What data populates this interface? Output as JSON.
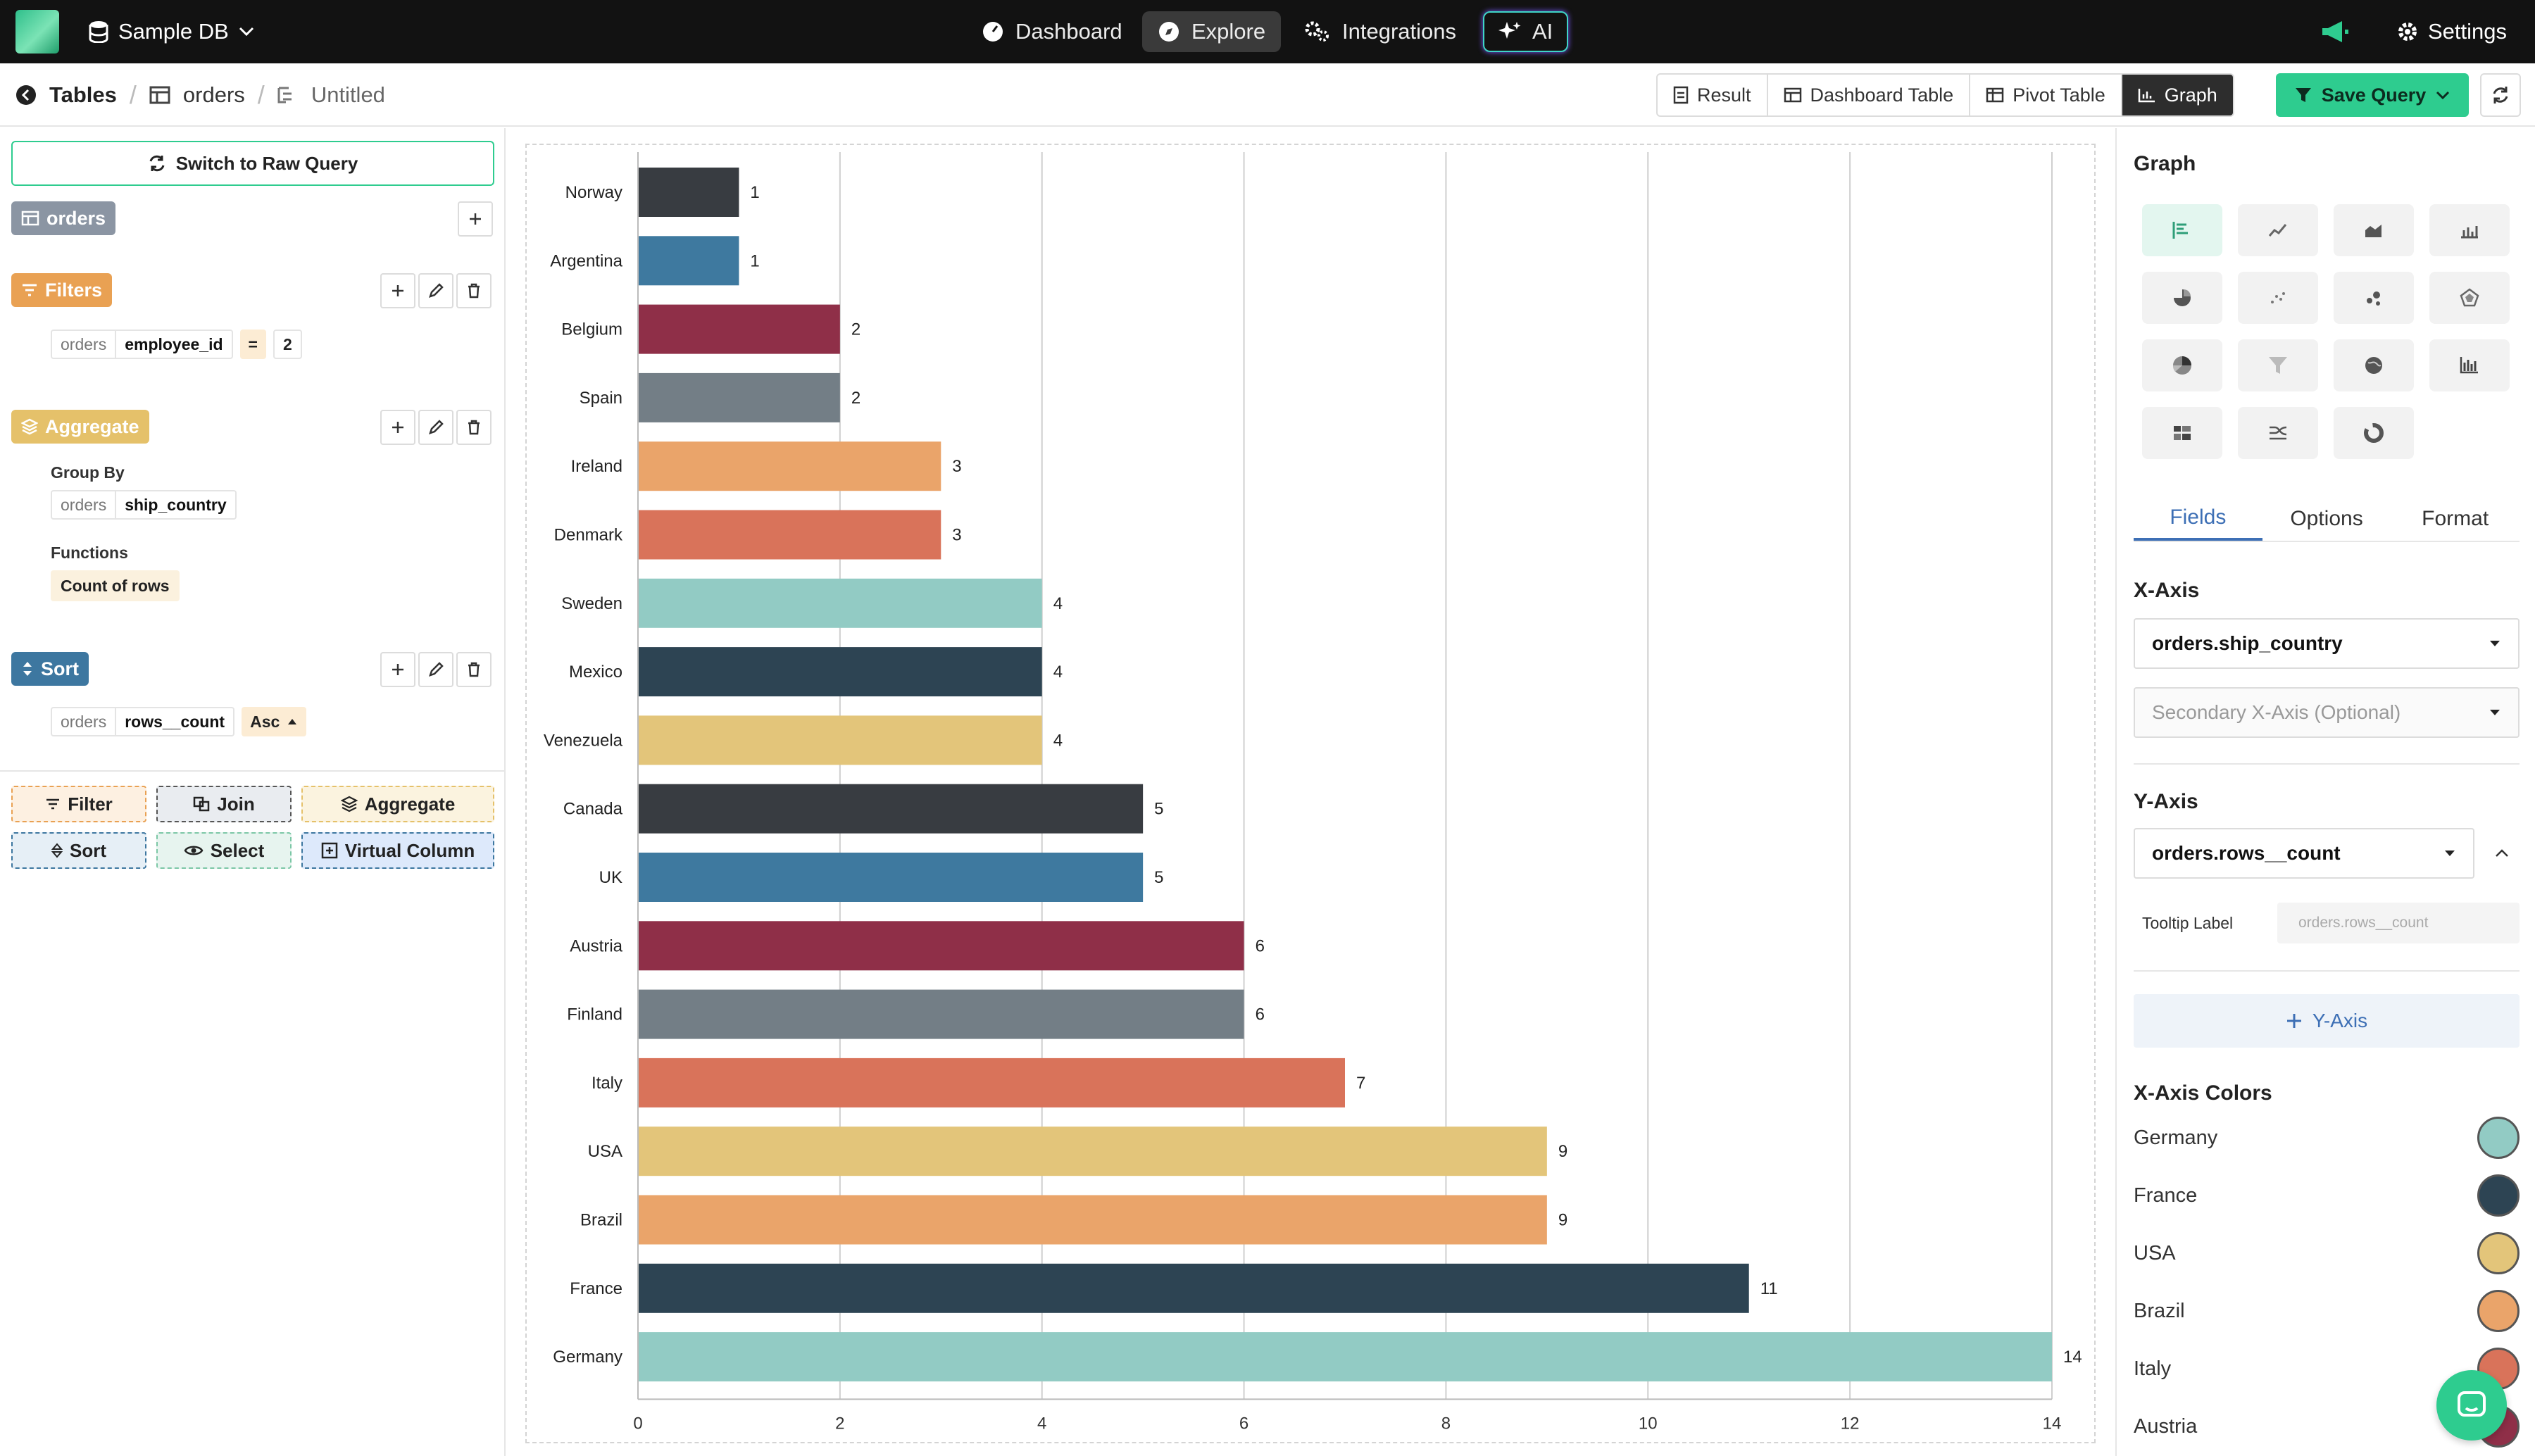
{
  "nav": {
    "db_name": "Sample DB",
    "items": [
      {
        "label": "Dashboard",
        "icon": "dashboard-gauge-icon"
      },
      {
        "label": "Explore",
        "icon": "compass-icon"
      },
      {
        "label": "Integrations",
        "icon": "gears-icon"
      },
      {
        "label": "AI",
        "icon": "sparkle-icon"
      }
    ],
    "settings_label": "Settings"
  },
  "breadcrumb": {
    "root": "Tables",
    "table": "orders",
    "query": "Untitled"
  },
  "view_tabs": [
    {
      "label": "Result"
    },
    {
      "label": "Dashboard Table"
    },
    {
      "label": "Pivot Table"
    },
    {
      "label": "Graph"
    }
  ],
  "save_label": "Save Query",
  "left": {
    "raw_query_label": "Switch to Raw Query",
    "source_label": "orders",
    "filters": {
      "label": "Filters",
      "table": "orders",
      "column": "employee_id",
      "operator": "=",
      "value": "2"
    },
    "aggregate": {
      "label": "Aggregate",
      "group_by_label": "Group By",
      "group_table": "orders",
      "group_column": "ship_country",
      "functions_label": "Functions",
      "function": "Count of rows"
    },
    "sort": {
      "label": "Sort",
      "table": "orders",
      "column": "rows__count",
      "direction": "Asc"
    },
    "add_buttons": {
      "filter": "Filter",
      "join": "Join",
      "aggregate": "Aggregate",
      "sort": "Sort",
      "select": "Select",
      "virtual": "Virtual Column"
    }
  },
  "chart_data": {
    "type": "bar",
    "orientation": "horizontal",
    "categories": [
      "Norway",
      "Argentina",
      "Belgium",
      "Spain",
      "Ireland",
      "Denmark",
      "Sweden",
      "Mexico",
      "Venezuela",
      "Canada",
      "UK",
      "Austria",
      "Finland",
      "Italy",
      "USA",
      "Brazil",
      "France",
      "Germany"
    ],
    "values": [
      1,
      1,
      2,
      2,
      3,
      3,
      4,
      4,
      4,
      5,
      5,
      6,
      6,
      7,
      9,
      9,
      11,
      14
    ],
    "colors": [
      "#383c41",
      "#3e799f",
      "#8f2f48",
      "#737e86",
      "#eaa46a",
      "#d9735a",
      "#92cbc4",
      "#2d4453",
      "#e3c57a",
      "#383c41",
      "#3e799f",
      "#8f2f48",
      "#737e86",
      "#d9735a",
      "#e3c57a",
      "#eaa46a",
      "#2d4453",
      "#92cbc4"
    ],
    "x_ticks": [
      0,
      2,
      4,
      6,
      8,
      10,
      12,
      14
    ],
    "xlim": [
      0,
      14
    ],
    "grid": true,
    "data_labels": true,
    "title": "",
    "xlabel": "",
    "ylabel": ""
  },
  "right": {
    "title": "Graph",
    "chart_types": [
      "horizontal-bar-icon",
      "line-chart-icon",
      "area-chart-icon",
      "bar-line-icon",
      "pie-chart-icon",
      "scatter-icon",
      "bubble-icon",
      "radar-icon",
      "pie-3d-icon",
      "funnel-icon",
      "globe-map-icon",
      "histogram-icon",
      "table-grid-icon",
      "sankey-icon",
      "donut-icon"
    ],
    "tabs": [
      "Fields",
      "Options",
      "Format"
    ],
    "x_axis_label": "X-Axis",
    "x_axis_value": "orders.ship_country",
    "secondary_x_placeholder": "Secondary X-Axis (Optional)",
    "y_axis_label": "Y-Axis",
    "y_axis_value": "orders.rows__count",
    "tooltip_label": "Tooltip Label",
    "tooltip_placeholder": "orders.rows__count",
    "add_y_axis_label": "Y-Axis",
    "x_axis_colors_label": "X-Axis Colors",
    "colors": [
      {
        "name": "Germany",
        "color": "#92cbc4"
      },
      {
        "name": "France",
        "color": "#2d4453"
      },
      {
        "name": "USA",
        "color": "#e3c57a"
      },
      {
        "name": "Brazil",
        "color": "#eaa46a"
      },
      {
        "name": "Italy",
        "color": "#d9735a"
      },
      {
        "name": "Austria",
        "color": "#8f2f48"
      }
    ]
  }
}
